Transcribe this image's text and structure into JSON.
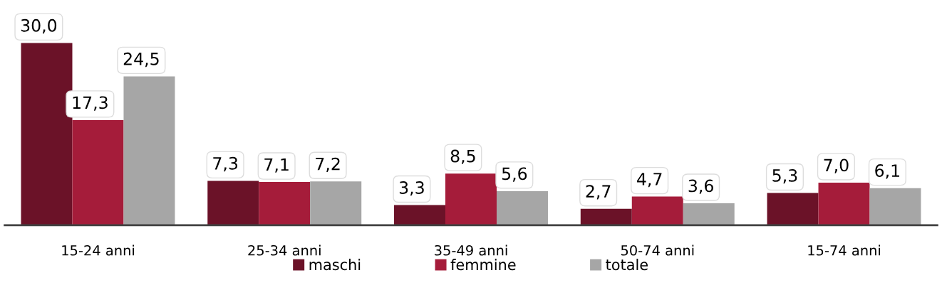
{
  "chart_data": {
    "type": "bar",
    "categories": [
      "15-24 anni",
      "25-34 anni",
      "35-49 anni",
      "50-74 anni",
      "15-74 anni"
    ],
    "series": [
      {
        "name": "maschi",
        "color": "#6b1228",
        "values": [
          30.0,
          7.3,
          3.3,
          2.7,
          5.3
        ],
        "value_labels": [
          "30,0",
          "7,3",
          "3,3",
          "2,7",
          "5,3"
        ]
      },
      {
        "name": "femmine",
        "color": "#a51c3a",
        "values": [
          17.3,
          7.1,
          8.5,
          4.7,
          7.0
        ],
        "value_labels": [
          "17,3",
          "7,1",
          "8,5",
          "4,7",
          "7,0"
        ]
      },
      {
        "name": "totale",
        "color": "#a6a6a6",
        "values": [
          24.5,
          7.2,
          5.6,
          3.6,
          6.1
        ],
        "value_labels": [
          "24,5",
          "7,2",
          "5,6",
          "3,6",
          "6,1"
        ]
      }
    ],
    "legend": "bottom",
    "grid": false
  }
}
